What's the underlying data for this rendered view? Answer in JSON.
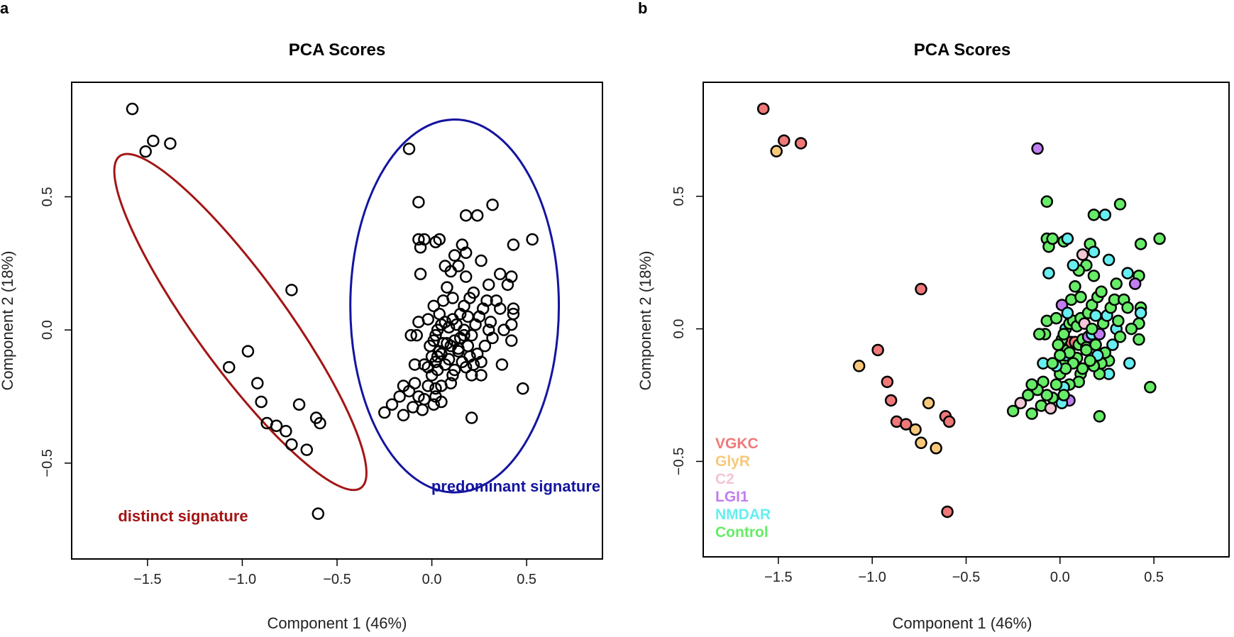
{
  "chart_data": [
    {
      "panel_label": "a",
      "type": "scatter",
      "title": "PCA Scores",
      "xlabel": "Component 1 (46%)",
      "ylabel": "Component 2 (18%)",
      "xlim": [
        -1.9,
        0.9
      ],
      "ylim": [
        -0.86,
        0.93
      ],
      "xticks": [
        -1.5,
        -1.0,
        -0.5,
        0.0,
        0.5
      ],
      "xtick_labels": [
        "−1.5",
        "−1.0",
        "−0.5",
        "0.0",
        "0.5"
      ],
      "yticks": [
        -0.5,
        0.0,
        0.5
      ],
      "ytick_labels": [
        "−0.5",
        "0.0",
        "0.5"
      ],
      "grid": false,
      "marker": "open-circle",
      "annotations": [
        {
          "text": "distinct signature",
          "color": "#a31515"
        },
        {
          "text": "predominant signature",
          "color": "#1414a0"
        }
      ],
      "ellipses": [
        {
          "name": "distinct",
          "color": "#a31515",
          "cx": -1.01,
          "cy": 0.03,
          "rx": 0.24,
          "ry": 0.77,
          "angle": 36
        },
        {
          "name": "predominant",
          "color": "#1414a0",
          "cx": 0.12,
          "cy": 0.09,
          "rx": 0.55,
          "ry": 0.7,
          "angle": 0
        }
      ]
    },
    {
      "panel_label": "b",
      "type": "scatter",
      "title": "PCA Scores",
      "xlabel": "Component 1 (46%)",
      "ylabel": "Component 2 (18%)",
      "xlim": [
        -1.9,
        0.9
      ],
      "ylim": [
        -0.86,
        0.93
      ],
      "xticks": [
        -1.5,
        -1.0,
        -0.5,
        0.0,
        0.5
      ],
      "xtick_labels": [
        "−1.5",
        "−1.0",
        "−0.5",
        "0.0",
        "0.5"
      ],
      "yticks": [
        -0.5,
        0.0,
        0.5
      ],
      "ytick_labels": [
        "−0.5",
        "0.0",
        "0.5"
      ],
      "grid": false,
      "legend_position": "bottom-left",
      "series": [
        {
          "name": "VGKC",
          "color": "#f07878"
        },
        {
          "name": "GlyR",
          "color": "#f8c87a"
        },
        {
          "name": "C2",
          "color": "#f2c6d4"
        },
        {
          "name": "LGI1",
          "color": "#c07ef0"
        },
        {
          "name": "NMDAR",
          "color": "#66eef0"
        },
        {
          "name": "Control",
          "color": "#66ec66"
        }
      ],
      "points": [
        [
          -1.58,
          0.83,
          0
        ],
        [
          -1.51,
          0.67,
          1
        ],
        [
          -1.47,
          0.71,
          0
        ],
        [
          -1.38,
          0.7,
          0
        ],
        [
          -0.74,
          0.15,
          0
        ],
        [
          -0.97,
          -0.08,
          0
        ],
        [
          -1.07,
          -0.14,
          1
        ],
        [
          -0.92,
          -0.2,
          0
        ],
        [
          -0.9,
          -0.27,
          0
        ],
        [
          -0.87,
          -0.35,
          0
        ],
        [
          -0.82,
          -0.36,
          0
        ],
        [
          -0.77,
          -0.38,
          1
        ],
        [
          -0.74,
          -0.43,
          1
        ],
        [
          -0.7,
          -0.28,
          1
        ],
        [
          -0.66,
          -0.45,
          1
        ],
        [
          -0.61,
          -0.33,
          0
        ],
        [
          -0.59,
          -0.35,
          0
        ],
        [
          -0.6,
          -0.69,
          0
        ],
        [
          -0.12,
          0.68,
          3
        ],
        [
          -0.07,
          0.48,
          5
        ],
        [
          -0.07,
          0.34,
          5
        ],
        [
          -0.06,
          0.21,
          4
        ],
        [
          -0.07,
          0.03,
          5
        ],
        [
          -0.06,
          0.31,
          5
        ],
        [
          -0.04,
          0.34,
          5
        ],
        [
          0.02,
          0.33,
          5
        ],
        [
          0.04,
          0.34,
          4
        ],
        [
          0.18,
          0.43,
          5
        ],
        [
          0.24,
          0.43,
          4
        ],
        [
          0.32,
          0.47,
          5
        ],
        [
          0.53,
          0.34,
          5
        ],
        [
          0.43,
          0.32,
          5
        ],
        [
          0.42,
          0.2,
          5
        ],
        [
          0.36,
          0.21,
          4
        ],
        [
          0.4,
          0.17,
          3
        ],
        [
          0.43,
          0.08,
          5
        ],
        [
          0.43,
          0.06,
          4
        ],
        [
          0.42,
          0.02,
          5
        ],
        [
          0.42,
          -0.04,
          5
        ],
        [
          0.37,
          -0.13,
          4
        ],
        [
          0.48,
          -0.22,
          5
        ],
        [
          0.26,
          -0.17,
          4
        ],
        [
          0.21,
          -0.33,
          5
        ],
        [
          0.21,
          -0.17,
          5
        ],
        [
          0.11,
          -0.17,
          5
        ],
        [
          0.1,
          -0.2,
          5
        ],
        [
          0.05,
          -0.27,
          3
        ],
        [
          0.05,
          -0.21,
          5
        ],
        [
          0.02,
          -0.22,
          4
        ],
        [
          -0.02,
          -0.21,
          5
        ],
        [
          -0.04,
          -0.26,
          5
        ],
        [
          -0.09,
          -0.2,
          5
        ],
        [
          -0.12,
          -0.23,
          5
        ],
        [
          -0.15,
          -0.21,
          5
        ],
        [
          -0.17,
          -0.25,
          5
        ],
        [
          -0.21,
          -0.28,
          2
        ],
        [
          -0.25,
          -0.31,
          5
        ],
        [
          -0.15,
          -0.32,
          5
        ],
        [
          -0.1,
          -0.29,
          5
        ],
        [
          -0.07,
          -0.25,
          5
        ],
        [
          -0.05,
          -0.3,
          2
        ],
        [
          0.01,
          -0.28,
          4
        ],
        [
          0.02,
          -0.25,
          5
        ],
        [
          -0.08,
          -0.02,
          5
        ],
        [
          -0.11,
          -0.02,
          5
        ],
        [
          -0.09,
          -0.13,
          4
        ],
        [
          0.0,
          -0.17,
          5
        ],
        [
          0.02,
          -0.12,
          5
        ],
        [
          0.03,
          -0.1,
          4
        ],
        [
          0.04,
          -0.08,
          5
        ],
        [
          0.06,
          -0.05,
          0
        ],
        [
          0.08,
          -0.05,
          0
        ],
        [
          0.1,
          -0.06,
          5
        ],
        [
          0.12,
          -0.04,
          5
        ],
        [
          0.14,
          -0.07,
          5
        ],
        [
          0.15,
          -0.03,
          3
        ],
        [
          0.17,
          -0.02,
          4
        ],
        [
          0.19,
          -0.06,
          5
        ],
        [
          0.21,
          -0.02,
          3
        ],
        [
          0.23,
          0.02,
          5
        ],
        [
          0.25,
          0.05,
          4
        ],
        [
          0.27,
          0.08,
          5
        ],
        [
          0.29,
          0.11,
          5
        ],
        [
          0.3,
          0.0,
          4
        ],
        [
          0.31,
          0.03,
          5
        ],
        [
          0.32,
          -0.03,
          5
        ],
        [
          0.28,
          -0.06,
          4
        ],
        [
          0.26,
          -0.12,
          5
        ],
        [
          0.24,
          -0.09,
          5
        ],
        [
          0.22,
          -0.13,
          5
        ],
        [
          0.2,
          -0.1,
          4
        ],
        [
          0.18,
          -0.14,
          5
        ],
        [
          0.16,
          -0.12,
          5
        ],
        [
          0.14,
          -0.08,
          5
        ],
        [
          0.12,
          -0.15,
          5
        ],
        [
          0.09,
          -0.11,
          5
        ],
        [
          0.07,
          -0.13,
          5
        ],
        [
          0.05,
          -0.09,
          5
        ],
        [
          0.03,
          -0.15,
          5
        ],
        [
          0.0,
          -0.1,
          5
        ],
        [
          -0.02,
          -0.14,
          4
        ],
        [
          -0.04,
          -0.13,
          5
        ],
        [
          0.01,
          -0.04,
          5
        ],
        [
          0.03,
          0.0,
          4
        ],
        [
          0.05,
          0.02,
          5
        ],
        [
          0.07,
          0.03,
          5
        ],
        [
          0.09,
          0.01,
          5
        ],
        [
          0.11,
          0.04,
          5
        ],
        [
          0.13,
          0.02,
          2
        ],
        [
          0.15,
          0.06,
          5
        ],
        [
          0.17,
          0.09,
          5
        ],
        [
          0.19,
          0.05,
          4
        ],
        [
          0.2,
          0.12,
          5
        ],
        [
          0.22,
          0.14,
          5
        ],
        [
          0.18,
          0.2,
          5
        ],
        [
          0.14,
          0.24,
          5
        ],
        [
          0.1,
          0.22,
          5
        ],
        [
          0.07,
          0.24,
          4
        ],
        [
          0.12,
          0.28,
          2
        ],
        [
          0.16,
          0.32,
          5
        ],
        [
          0.18,
          0.29,
          4
        ],
        [
          0.26,
          0.26,
          4
        ],
        [
          0.3,
          0.17,
          5
        ],
        [
          0.34,
          0.11,
          5
        ],
        [
          0.36,
          0.08,
          5
        ],
        [
          0.38,
          0.0,
          5
        ],
        [
          0.01,
          0.09,
          3
        ],
        [
          0.04,
          0.06,
          4
        ],
        [
          0.06,
          0.11,
          5
        ],
        [
          0.08,
          0.16,
          5
        ],
        [
          0.11,
          0.12,
          5
        ],
        [
          -0.02,
          0.04,
          5
        ],
        [
          -0.01,
          -0.06,
          5
        ],
        [
          0.02,
          -0.02,
          5
        ],
        [
          0.17,
          0.0,
          5
        ]
      ]
    }
  ]
}
